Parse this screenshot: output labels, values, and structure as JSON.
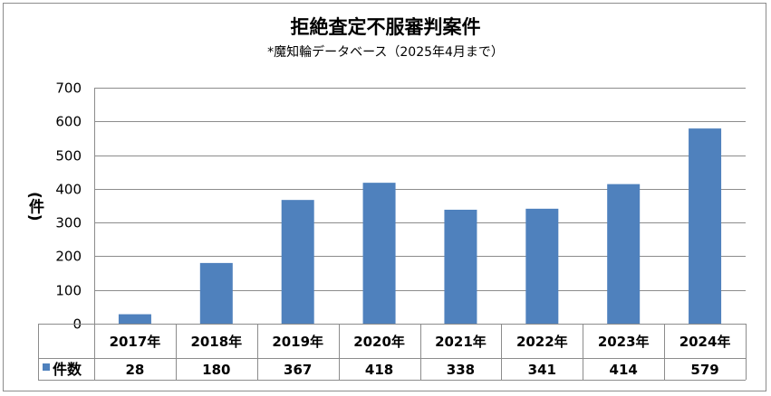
{
  "chart_data": {
    "type": "bar",
    "title": "拒絶査定不服審判案件",
    "subtitle": "*魔知輪データベース（2025年4月まで）",
    "ylabel": "(件)",
    "xlabel": "",
    "categories": [
      "2017年",
      "2018年",
      "2019年",
      "2020年",
      "2021年",
      "2022年",
      "2023年",
      "2024年"
    ],
    "series": [
      {
        "name": "件数",
        "values": [
          28,
          180,
          367,
          418,
          338,
          341,
          414,
          579
        ],
        "color": "#4f81bd"
      }
    ],
    "ylim": [
      0,
      700
    ],
    "yticks": [
      0,
      100,
      200,
      300,
      400,
      500,
      600,
      700
    ],
    "grid": true,
    "data_table": true,
    "legend_position": "data-table-left"
  }
}
